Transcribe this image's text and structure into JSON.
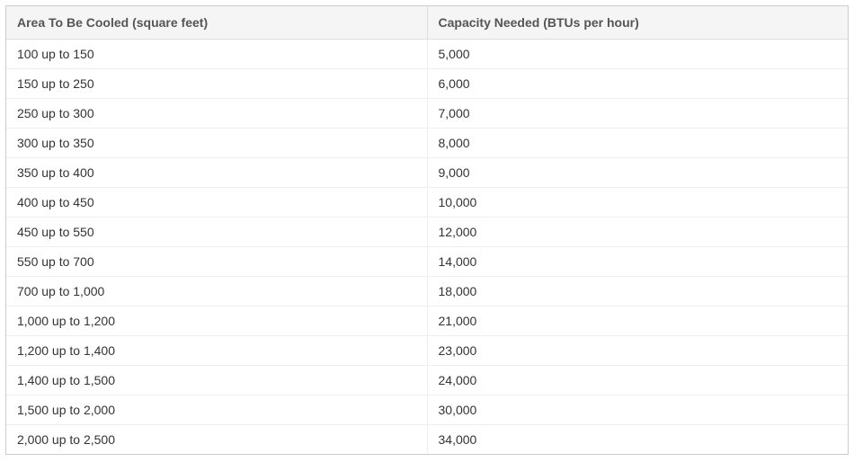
{
  "table": {
    "type": "table",
    "columns": [
      {
        "label": "Area To Be Cooled (square feet)",
        "width_pct": 50,
        "align": "left"
      },
      {
        "label": "Capacity Needed (BTUs per hour)",
        "width_pct": 50,
        "align": "left"
      }
    ],
    "rows": [
      [
        "100 up to 150",
        "5,000"
      ],
      [
        "150 up to 250",
        "6,000"
      ],
      [
        "250 up to 300",
        "7,000"
      ],
      [
        "300 up to 350",
        "8,000"
      ],
      [
        "350 up to 400",
        "9,000"
      ],
      [
        "400 up to 450",
        "10,000"
      ],
      [
        "450 up to 550",
        "12,000"
      ],
      [
        "550 up to 700",
        "14,000"
      ],
      [
        "700 up to 1,000",
        "18,000"
      ],
      [
        "1,000 up to 1,200",
        "21,000"
      ],
      [
        "1,200 up to 1,400",
        "23,000"
      ],
      [
        "1,400 up to 1,500",
        "24,000"
      ],
      [
        "1,500 up to 2,000",
        "30,000"
      ],
      [
        "2,000 up to 2,500",
        "34,000"
      ]
    ],
    "header_background_color": "#f5f5f5",
    "header_text_color": "#555555",
    "header_fontsize": 14,
    "header_fontweight": 700,
    "body_text_color": "#333333",
    "body_fontsize": 14,
    "outer_border_color": "#cccccc",
    "header_border_color": "#dddddd",
    "row_border_color": "#eeeeee",
    "background_color": "#ffffff",
    "cell_padding_v": 8,
    "cell_padding_h": 12
  }
}
